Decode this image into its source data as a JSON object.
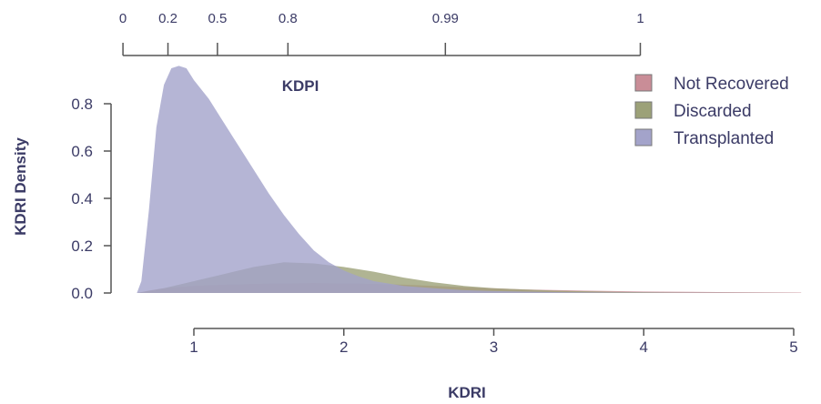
{
  "chart_data": {
    "type": "area",
    "xlabel": "KDRI",
    "ylabel": "KDRI Density",
    "top_axis_label": "KDPI",
    "xlim": [
      0.6,
      5.05
    ],
    "ylim": [
      0,
      0.97
    ],
    "x_ticks": [
      1,
      2,
      3,
      4,
      5
    ],
    "y_ticks": [
      0.0,
      0.2,
      0.4,
      0.6,
      0.8
    ],
    "y_tick_labels": [
      "0.0",
      "0.2",
      "0.4",
      "0.6",
      "0.8"
    ],
    "top_ticks": [
      {
        "label": "0",
        "kdri": 0.6
      },
      {
        "label": "0.2",
        "kdri": 0.9
      },
      {
        "label": "0.5",
        "kdri": 1.23
      },
      {
        "label": "0.8",
        "kdri": 1.7
      },
      {
        "label": "0.99",
        "kdri": 2.75
      },
      {
        "label": "1",
        "kdri": 4.05
      }
    ],
    "legend_position": "top-right",
    "series": [
      {
        "name": "Not Recovered",
        "color": "#c98d97",
        "points": [
          [
            0.62,
            0
          ],
          [
            0.7,
            0.01
          ],
          [
            0.8,
            0.02
          ],
          [
            1.0,
            0.03
          ],
          [
            1.2,
            0.035
          ],
          [
            1.5,
            0.04
          ],
          [
            1.8,
            0.042
          ],
          [
            2.1,
            0.04
          ],
          [
            2.4,
            0.035
          ],
          [
            2.8,
            0.025
          ],
          [
            3.2,
            0.015
          ],
          [
            3.6,
            0.01
          ],
          [
            4.0,
            0.006
          ],
          [
            4.5,
            0.004
          ],
          [
            5.05,
            0.002
          ]
        ]
      },
      {
        "name": "Discarded",
        "color": "#9ca178",
        "points": [
          [
            0.62,
            0
          ],
          [
            0.8,
            0.02
          ],
          [
            1.0,
            0.05
          ],
          [
            1.2,
            0.08
          ],
          [
            1.4,
            0.11
          ],
          [
            1.6,
            0.13
          ],
          [
            1.8,
            0.125
          ],
          [
            2.0,
            0.11
          ],
          [
            2.2,
            0.09
          ],
          [
            2.4,
            0.065
          ],
          [
            2.6,
            0.045
          ],
          [
            2.8,
            0.03
          ],
          [
            3.0,
            0.02
          ],
          [
            3.4,
            0.01
          ],
          [
            3.8,
            0.005
          ],
          [
            4.2,
            0.002
          ],
          [
            4.6,
            0.001
          ],
          [
            5.05,
            0
          ]
        ]
      },
      {
        "name": "Transplanted",
        "color": "#a3a3ca",
        "points": [
          [
            0.62,
            0
          ],
          [
            0.65,
            0.05
          ],
          [
            0.7,
            0.35
          ],
          [
            0.75,
            0.7
          ],
          [
            0.8,
            0.88
          ],
          [
            0.85,
            0.95
          ],
          [
            0.9,
            0.96
          ],
          [
            0.95,
            0.95
          ],
          [
            1.0,
            0.9
          ],
          [
            1.1,
            0.82
          ],
          [
            1.2,
            0.72
          ],
          [
            1.3,
            0.62
          ],
          [
            1.4,
            0.52
          ],
          [
            1.5,
            0.42
          ],
          [
            1.6,
            0.33
          ],
          [
            1.7,
            0.25
          ],
          [
            1.8,
            0.18
          ],
          [
            1.9,
            0.13
          ],
          [
            2.0,
            0.095
          ],
          [
            2.1,
            0.07
          ],
          [
            2.2,
            0.05
          ],
          [
            2.4,
            0.03
          ],
          [
            2.6,
            0.02
          ],
          [
            2.8,
            0.012
          ],
          [
            3.0,
            0.008
          ],
          [
            3.4,
            0.004
          ],
          [
            3.8,
            0.002
          ],
          [
            4.2,
            0.001
          ],
          [
            5.05,
            0
          ]
        ]
      }
    ]
  }
}
